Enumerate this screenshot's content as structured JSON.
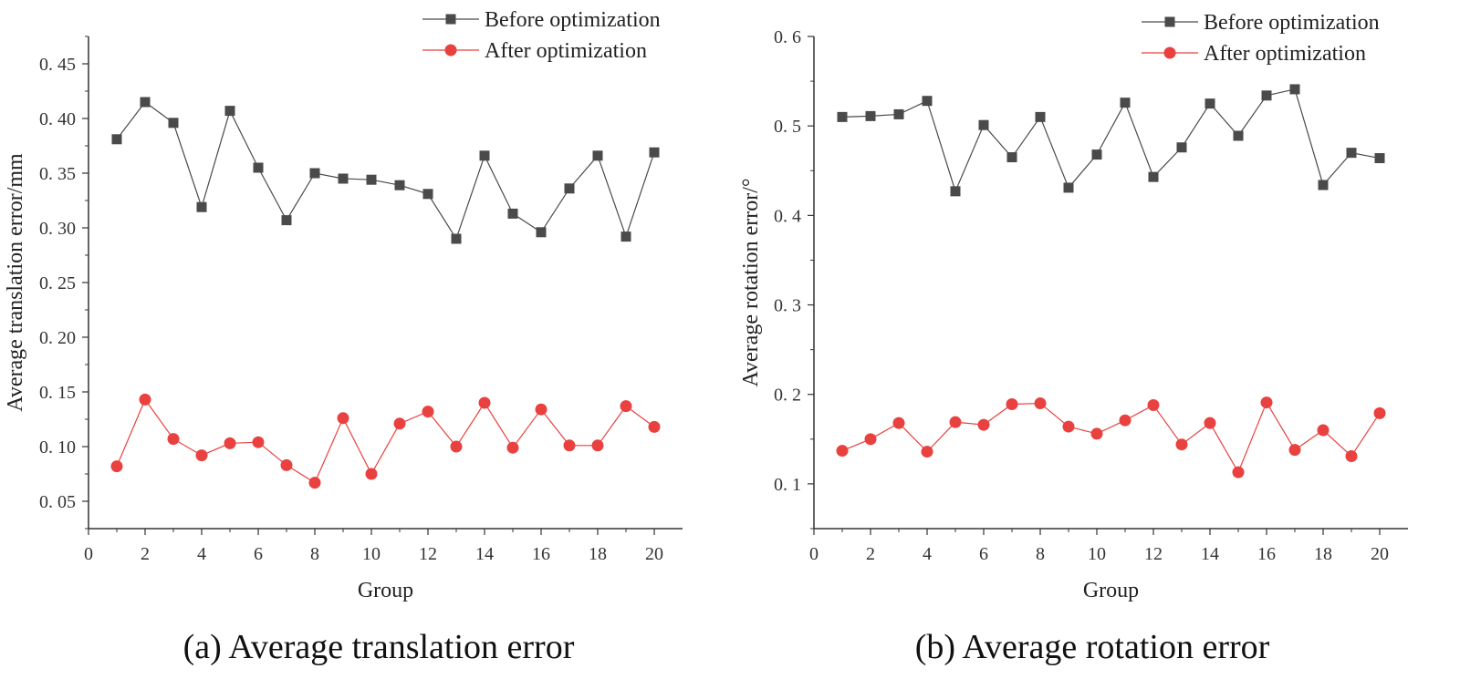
{
  "chart_data": [
    {
      "type": "line",
      "caption": "(a) Average translation error",
      "xlabel": "Group",
      "ylabel": "Average translation error/mm",
      "xlim": [
        0,
        21
      ],
      "ylim": [
        0.025,
        0.475
      ],
      "xticks": [
        0,
        2,
        4,
        6,
        8,
        10,
        12,
        14,
        16,
        18,
        20
      ],
      "xtick_labels": [
        "0",
        "2",
        "4",
        "6",
        "8",
        "10",
        "12",
        "14",
        "16",
        "18",
        "20"
      ],
      "yticks": [
        0.05,
        0.1,
        0.15,
        0.2,
        0.25,
        0.3,
        0.35,
        0.4,
        0.45
      ],
      "ytick_labels": [
        "0. 05",
        "0. 10",
        "0. 15",
        "0. 20",
        "0. 25",
        "0. 30",
        "0. 35",
        "0. 40",
        "0. 45"
      ],
      "grid": false,
      "legend_position": "top-right",
      "x": [
        1,
        2,
        3,
        4,
        5,
        6,
        7,
        8,
        9,
        10,
        11,
        12,
        13,
        14,
        15,
        16,
        17,
        18,
        19,
        20
      ],
      "series": [
        {
          "name": "Before optimization",
          "color": "#4a4a4a",
          "marker": "square",
          "values": [
            0.381,
            0.415,
            0.396,
            0.319,
            0.407,
            0.355,
            0.307,
            0.35,
            0.345,
            0.344,
            0.339,
            0.331,
            0.29,
            0.366,
            0.313,
            0.296,
            0.336,
            0.366,
            0.292,
            0.369
          ]
        },
        {
          "name": "After optimization",
          "color": "#e8413f",
          "marker": "circle",
          "values": [
            0.082,
            0.143,
            0.107,
            0.092,
            0.103,
            0.104,
            0.083,
            0.067,
            0.126,
            0.075,
            0.121,
            0.132,
            0.1,
            0.14,
            0.099,
            0.134,
            0.101,
            0.101,
            0.137,
            0.118
          ]
        }
      ]
    },
    {
      "type": "line",
      "caption": "(b) Average rotation error",
      "xlabel": "Group",
      "ylabel": "Average rotation error/°",
      "xlim": [
        0,
        21
      ],
      "ylim": [
        0.05,
        0.6
      ],
      "xticks": [
        0,
        2,
        4,
        6,
        8,
        10,
        12,
        14,
        16,
        18,
        20
      ],
      "xtick_labels": [
        "0",
        "2",
        "4",
        "6",
        "8",
        "10",
        "12",
        "14",
        "16",
        "18",
        "20"
      ],
      "yticks": [
        0.1,
        0.2,
        0.3,
        0.4,
        0.5,
        0.6
      ],
      "ytick_labels": [
        "0. 1",
        "0. 2",
        "0. 3",
        "0. 4",
        "0. 5",
        "0. 6"
      ],
      "grid": false,
      "legend_position": "top-right",
      "x": [
        1,
        2,
        3,
        4,
        5,
        6,
        7,
        8,
        9,
        10,
        11,
        12,
        13,
        14,
        15,
        16,
        17,
        18,
        19,
        20
      ],
      "series": [
        {
          "name": "Before optimization",
          "color": "#4a4a4a",
          "marker": "square",
          "values": [
            0.51,
            0.511,
            0.513,
            0.528,
            0.427,
            0.501,
            0.465,
            0.51,
            0.431,
            0.468,
            0.526,
            0.443,
            0.476,
            0.525,
            0.489,
            0.534,
            0.541,
            0.434,
            0.47,
            0.464
          ]
        },
        {
          "name": "After optimization",
          "color": "#e8413f",
          "marker": "circle",
          "values": [
            0.137,
            0.15,
            0.168,
            0.136,
            0.169,
            0.166,
            0.189,
            0.19,
            0.164,
            0.156,
            0.171,
            0.188,
            0.144,
            0.168,
            0.113,
            0.191,
            0.138,
            0.16,
            0.131,
            0.179
          ]
        }
      ]
    }
  ]
}
